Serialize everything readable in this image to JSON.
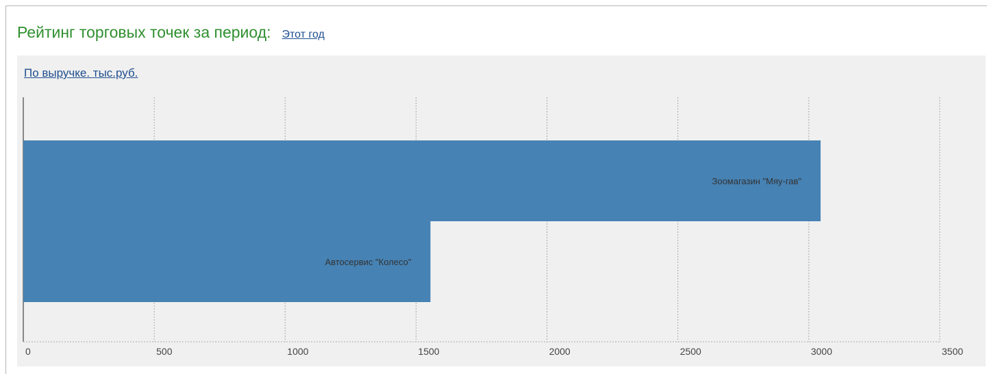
{
  "header": {
    "title": "Рейтинг торговых точек за период:",
    "period_link": "Этот год"
  },
  "panel": {
    "metric_link": "По выручке. тыс.руб."
  },
  "colors": {
    "title": "#2f8f2f",
    "link": "#1f4e8f",
    "bar": "#4682b4",
    "panel_bg": "#f0f0f0",
    "grid": "#aaaaaa"
  },
  "chart_data": {
    "type": "bar",
    "orientation": "horizontal",
    "categories": [
      "Зоомагазин \"Мяу-гав\"",
      "Автосервис \"Колесо\""
    ],
    "values": [
      3045,
      1555
    ],
    "xlim": [
      0,
      3500
    ],
    "xticks": [
      "0",
      "500",
      "1000",
      "1500",
      "2000",
      "2500",
      "3000",
      "3500"
    ],
    "grid": true,
    "legend": "none"
  }
}
